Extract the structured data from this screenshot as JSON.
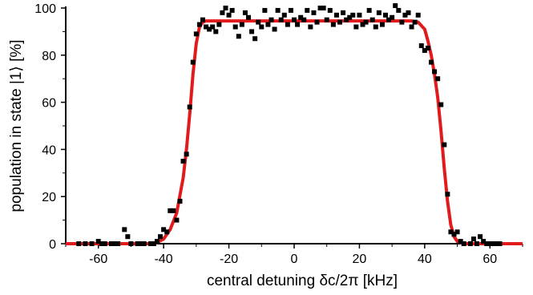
{
  "chart_data": {
    "type": "scatter",
    "xlabel": "central detuning δc/2π [kHz]",
    "ylabel": "population in state |1⟩ [%]",
    "xlim": [
      -70,
      70
    ],
    "ylim": [
      0,
      100
    ],
    "x_ticks": [
      -60,
      -40,
      -20,
      0,
      20,
      40,
      60
    ],
    "y_ticks": [
      0,
      20,
      40,
      60,
      80,
      100
    ],
    "x_tick_labels": [
      "-60",
      "-40",
      "-20",
      "0",
      "20",
      "40",
      "60"
    ],
    "y_tick_labels": [
      "0",
      "20",
      "40",
      "60",
      "80",
      "100"
    ],
    "grid": false,
    "series": [
      {
        "kind": "markers",
        "marker": "square",
        "color": "#000000",
        "points": [
          [
            -66,
            0
          ],
          [
            -64,
            0
          ],
          [
            -62,
            0
          ],
          [
            -60,
            1
          ],
          [
            -59,
            0
          ],
          [
            -58,
            0
          ],
          [
            -56,
            0
          ],
          [
            -55,
            0
          ],
          [
            -54,
            0
          ],
          [
            -52,
            6
          ],
          [
            -51,
            3
          ],
          [
            -50,
            0
          ],
          [
            -48,
            0
          ],
          [
            -47,
            0
          ],
          [
            -46,
            0
          ],
          [
            -44,
            0
          ],
          [
            -43,
            0
          ],
          [
            -42,
            1
          ],
          [
            -41,
            3
          ],
          [
            -40,
            6
          ],
          [
            -39,
            5
          ],
          [
            -38,
            14
          ],
          [
            -37,
            14
          ],
          [
            -36,
            10
          ],
          [
            -35,
            18
          ],
          [
            -34,
            35
          ],
          [
            -33,
            38
          ],
          [
            -32,
            58
          ],
          [
            -31,
            77
          ],
          [
            -30,
            89
          ],
          [
            -29,
            93
          ],
          [
            -28,
            95
          ],
          [
            -27,
            92
          ],
          [
            -26,
            91
          ],
          [
            -25,
            92
          ],
          [
            -24,
            90
          ],
          [
            -23,
            93
          ],
          [
            -22,
            98
          ],
          [
            -21,
            100
          ],
          [
            -20,
            97
          ],
          [
            -19,
            99
          ],
          [
            -18,
            92
          ],
          [
            -17,
            88
          ],
          [
            -16,
            93
          ],
          [
            -15,
            98
          ],
          [
            -14,
            96
          ],
          [
            -13,
            90
          ],
          [
            -12,
            87
          ],
          [
            -11,
            94
          ],
          [
            -10,
            92
          ],
          [
            -9,
            99
          ],
          [
            -8,
            93
          ],
          [
            -7,
            95
          ],
          [
            -6,
            91
          ],
          [
            -5,
            99
          ],
          [
            -4,
            95
          ],
          [
            -3,
            97
          ],
          [
            -2,
            93
          ],
          [
            -1,
            99
          ],
          [
            0,
            95
          ],
          [
            1,
            93
          ],
          [
            2,
            96
          ],
          [
            3,
            95
          ],
          [
            4,
            99
          ],
          [
            5,
            92
          ],
          [
            6,
            98
          ],
          [
            7,
            94
          ],
          [
            8,
            100
          ],
          [
            9,
            100
          ],
          [
            10,
            95
          ],
          [
            11,
            99
          ],
          [
            12,
            93
          ],
          [
            13,
            97
          ],
          [
            14,
            94
          ],
          [
            15,
            98
          ],
          [
            16,
            95
          ],
          [
            17,
            96
          ],
          [
            18,
            97
          ],
          [
            19,
            92
          ],
          [
            20,
            97
          ],
          [
            21,
            93
          ],
          [
            22,
            94
          ],
          [
            23,
            99
          ],
          [
            24,
            95
          ],
          [
            25,
            92
          ],
          [
            26,
            98
          ],
          [
            27,
            93
          ],
          [
            28,
            97
          ],
          [
            29,
            95
          ],
          [
            30,
            96
          ],
          [
            31,
            101
          ],
          [
            32,
            99
          ],
          [
            33,
            94
          ],
          [
            34,
            97
          ],
          [
            35,
            98
          ],
          [
            36,
            92
          ],
          [
            37,
            94
          ],
          [
            38,
            97
          ],
          [
            39,
            84
          ],
          [
            40,
            82
          ],
          [
            41,
            83
          ],
          [
            42,
            77
          ],
          [
            43,
            73
          ],
          [
            44,
            70
          ],
          [
            45,
            59
          ],
          [
            46,
            42
          ],
          [
            47,
            21
          ],
          [
            48,
            5
          ],
          [
            49,
            4
          ],
          [
            50,
            5
          ],
          [
            51,
            1
          ],
          [
            52,
            0
          ],
          [
            54,
            0
          ],
          [
            55,
            2
          ],
          [
            56,
            0
          ],
          [
            57,
            3
          ],
          [
            58,
            1
          ],
          [
            59,
            0
          ],
          [
            60,
            0
          ],
          [
            61,
            0
          ],
          [
            62,
            0
          ],
          [
            63,
            0
          ]
        ]
      },
      {
        "kind": "line",
        "color": "#e31a1c",
        "width": 4,
        "points": [
          [
            -70,
            0
          ],
          [
            -44,
            0
          ],
          [
            -42,
            0.5
          ],
          [
            -40,
            2
          ],
          [
            -38,
            6
          ],
          [
            -36,
            13
          ],
          [
            -34,
            28
          ],
          [
            -33,
            40
          ],
          [
            -32,
            55
          ],
          [
            -31,
            72
          ],
          [
            -30,
            85
          ],
          [
            -29,
            92
          ],
          [
            -28,
            94
          ],
          [
            -27,
            94.5
          ],
          [
            -20,
            94.5
          ],
          [
            0,
            94.5
          ],
          [
            20,
            94.5
          ],
          [
            36,
            94.5
          ],
          [
            38,
            94
          ],
          [
            40,
            91
          ],
          [
            41,
            86
          ],
          [
            42,
            80
          ],
          [
            43,
            72
          ],
          [
            44,
            62
          ],
          [
            45,
            48
          ],
          [
            46,
            32
          ],
          [
            47,
            18
          ],
          [
            48,
            8
          ],
          [
            49,
            3
          ],
          [
            50,
            1
          ],
          [
            52,
            0
          ],
          [
            70,
            0
          ]
        ]
      }
    ]
  }
}
